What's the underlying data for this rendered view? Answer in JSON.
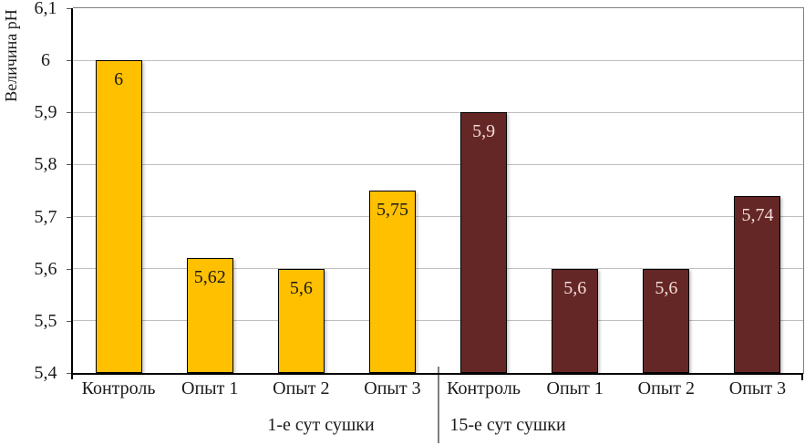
{
  "page": {
    "background": "#ffffff"
  },
  "chart_data": {
    "type": "bar",
    "title": "",
    "xlabel": "",
    "ylabel": "Величина pH",
    "ylim": [
      5.4,
      6.1
    ],
    "ytick_values": [
      6.1,
      6.0,
      5.9,
      5.8,
      5.7,
      5.6,
      5.5,
      5.4
    ],
    "ytick_labels": [
      "6,1",
      "6",
      "5,9",
      "5,8",
      "5,7",
      "5,6",
      "5,5",
      "5,4"
    ],
    "grid": true,
    "legend_position": "none",
    "decimal_separator": ",",
    "groups": [
      {
        "label": "1-е сут сушки",
        "bar_color": "#FFC000",
        "value_text_color": "#1a1a1a",
        "categories": [
          "Контроль",
          "Опыт 1",
          "Опыт 2",
          "Опыт 3"
        ],
        "values": [
          6,
          5.62,
          5.6,
          5.75
        ],
        "value_labels": [
          "6",
          "5,62",
          "5,6",
          "5,75"
        ]
      },
      {
        "label": "15-е сут сушки",
        "bar_color": "#652725",
        "value_text_color": "#F2DBDB",
        "categories": [
          "Контроль",
          "Опыт 1",
          "Опыт 2",
          "Опыт 3"
        ],
        "values": [
          5.9,
          5.6,
          5.6,
          5.74
        ],
        "value_labels": [
          "5,9",
          "5,6",
          "5,6",
          "5,74"
        ]
      }
    ],
    "colors": {
      "bar_border": "#000000",
      "gridline": "#BFBFBF",
      "plot_border": "#808080",
      "axis": "#000000",
      "group_divider": "#808080"
    }
  }
}
